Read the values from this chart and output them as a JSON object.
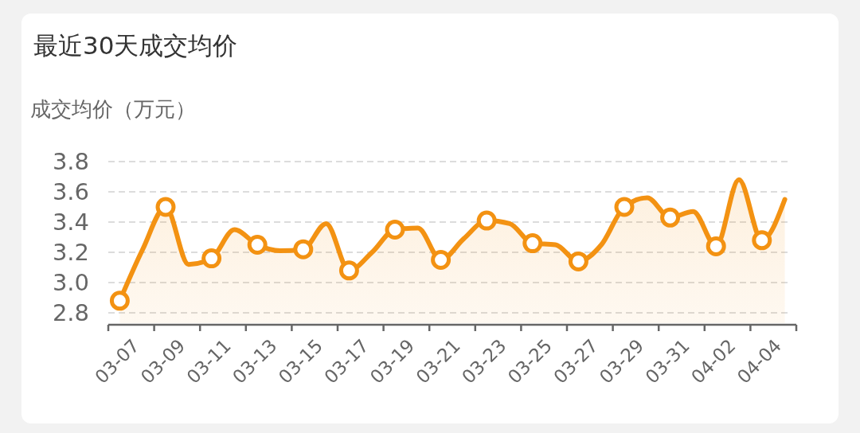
{
  "chart_data": {
    "type": "area",
    "title": "最近30天成交均价",
    "ylabel": "成交均价（万元）",
    "categories": [
      "03-07",
      null,
      "03-09",
      null,
      "03-11",
      null,
      "03-13",
      null,
      "03-15",
      null,
      "03-17",
      null,
      "03-19",
      null,
      "03-21",
      null,
      "03-23",
      null,
      "03-25",
      null,
      "03-27",
      null,
      "03-29",
      null,
      "03-31",
      null,
      "04-02",
      null,
      "04-04",
      null
    ],
    "series": [
      {
        "color": "#f39212",
        "values": [
          2.88,
          3.22,
          3.5,
          3.12,
          3.16,
          3.35,
          3.25,
          3.21,
          3.22,
          3.39,
          3.08,
          3.2,
          3.35,
          3.36,
          3.15,
          3.29,
          3.41,
          3.39,
          3.26,
          3.25,
          3.14,
          3.25,
          3.5,
          3.56,
          3.43,
          3.47,
          3.24,
          3.68,
          3.28,
          3.55
        ]
      }
    ],
    "ylim": [
      2.8,
      3.8
    ],
    "yticks": [
      2.8,
      {
        "value": 3,
        "label": "3.0"
      },
      3.2,
      3.4,
      3.6,
      3.8
    ],
    "grid": "y",
    "marker": "circle",
    "line_style": "solid"
  }
}
